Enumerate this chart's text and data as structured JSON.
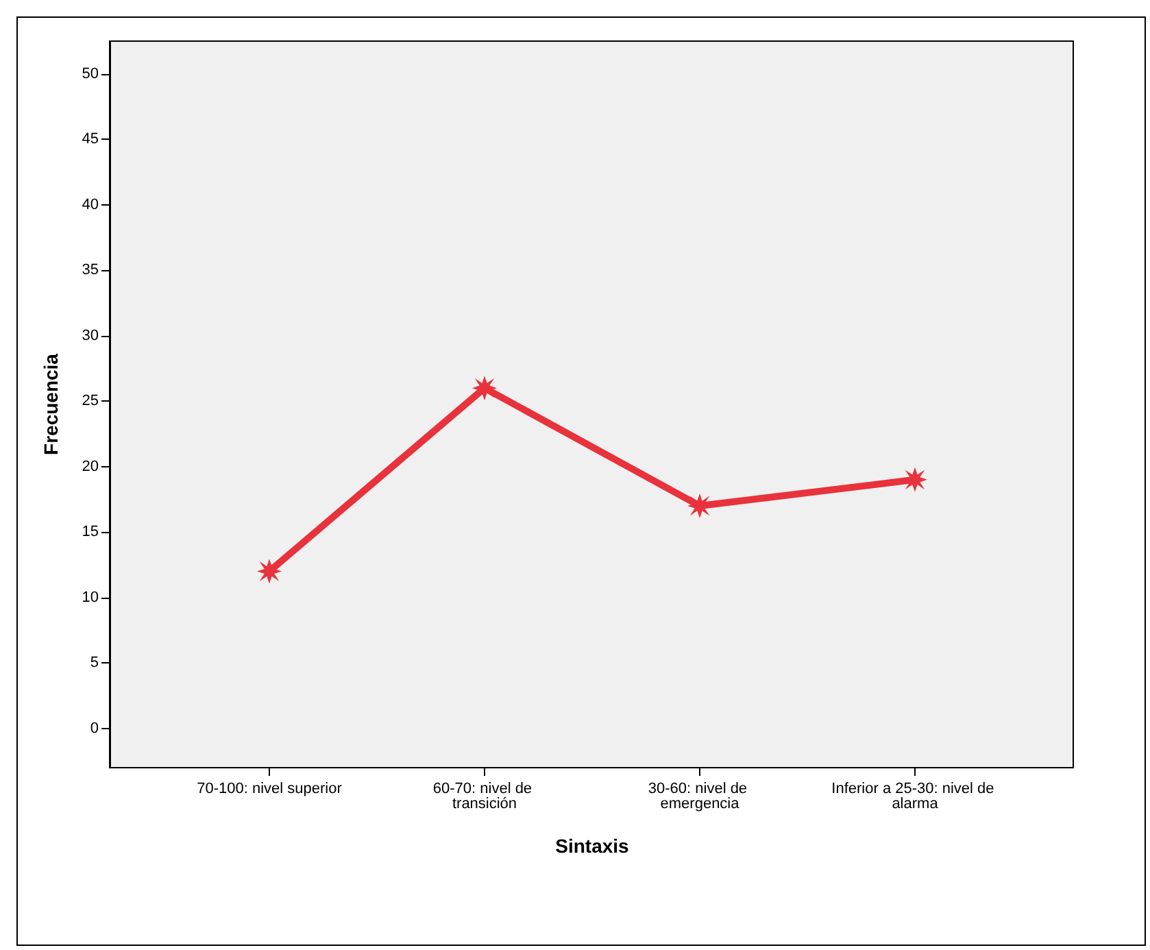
{
  "chart_data": {
    "type": "line",
    "xlabel": "Sintaxis",
    "ylabel": "Frecuencia",
    "categories": [
      "70-100: nivel superior",
      "60-70: nivel de transición",
      "30-60: nivel de emergencia",
      "Inferior a 25-30: nivel de alarma"
    ],
    "values": [
      12,
      26,
      17,
      19
    ],
    "color": "#e8323c",
    "marker": "star",
    "line_style": "solid",
    "ylim": [
      -3,
      52.5
    ],
    "yticks": [
      0,
      5,
      10,
      15,
      20,
      25,
      30,
      35,
      40,
      45,
      50
    ],
    "grid": false
  }
}
